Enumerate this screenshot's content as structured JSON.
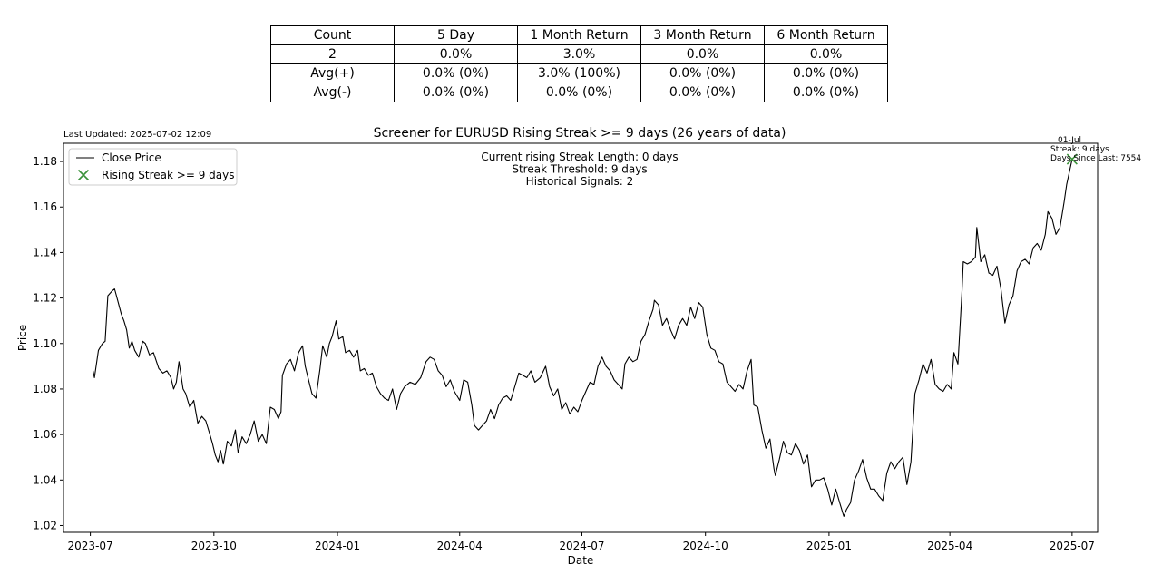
{
  "stats_table": {
    "header": [
      "Count",
      "5 Day",
      "1 Month Return",
      "3 Month Return",
      "6 Month Return"
    ],
    "rows": [
      [
        "2",
        "0.0%",
        "3.0%",
        "0.0%",
        "0.0%"
      ],
      [
        "Avg(+)",
        "0.0% (0%)",
        "3.0% (100%)",
        "0.0% (0%)",
        "0.0% (0%)"
      ],
      [
        "Avg(-)",
        "0.0% (0%)",
        "0.0% (0%)",
        "0.0% (0%)",
        "0.0% (0%)"
      ]
    ]
  },
  "last_updated": "Last Updated: 2025-07-02 12:09",
  "chart_data": {
    "type": "line",
    "title": "Screener for EURUSD Rising Streak >= 9 days (26 years of data)",
    "xlabel": "Date",
    "ylabel": "Price",
    "ylim": [
      1.017,
      1.188
    ],
    "xlim": [
      "2023-06-11",
      "2025-07-20"
    ],
    "x_tick_labels": [
      "2023-07",
      "2023-10",
      "2024-01",
      "2024-04",
      "2024-07",
      "2024-10",
      "2025-01",
      "2025-04",
      "2025-07"
    ],
    "x_tick_dates": [
      "2023-07-01",
      "2023-10-01",
      "2024-01-01",
      "2024-04-01",
      "2024-07-01",
      "2024-10-01",
      "2025-01-01",
      "2025-04-01",
      "2025-07-01"
    ],
    "y_ticks": [
      "1.02",
      "1.04",
      "1.06",
      "1.08",
      "1.10",
      "1.12",
      "1.14",
      "1.16",
      "1.18"
    ],
    "legend": {
      "placement": "top-left",
      "items": [
        "Close Price",
        "Rising Streak >= 9 days"
      ]
    },
    "info_lines": [
      "Current rising Streak Length: 0 days",
      "Streak Threshold: 9 days",
      "Historical Signals: 2"
    ],
    "signal_annotation": [
      "01-Jul",
      "Streak: 9 days",
      "Days Since Last: 7554"
    ],
    "line_color": "#000000",
    "marker_color": "#3a923a",
    "series": [
      {
        "name": "Close Price",
        "points": [
          [
            "2023-07-03",
            1.088
          ],
          [
            "2023-07-04",
            1.085
          ],
          [
            "2023-07-07",
            1.097
          ],
          [
            "2023-07-10",
            1.1
          ],
          [
            "2023-07-12",
            1.101
          ],
          [
            "2023-07-14",
            1.121
          ],
          [
            "2023-07-17",
            1.123
          ],
          [
            "2023-07-19",
            1.124
          ],
          [
            "2023-07-20",
            1.122
          ],
          [
            "2023-07-24",
            1.113
          ],
          [
            "2023-07-26",
            1.11
          ],
          [
            "2023-07-28",
            1.106
          ],
          [
            "2023-07-30",
            1.098
          ],
          [
            "2023-08-01",
            1.101
          ],
          [
            "2023-08-03",
            1.097
          ],
          [
            "2023-08-06",
            1.094
          ],
          [
            "2023-08-09",
            1.101
          ],
          [
            "2023-08-11",
            1.1
          ],
          [
            "2023-08-14",
            1.095
          ],
          [
            "2023-08-17",
            1.096
          ],
          [
            "2023-08-21",
            1.089
          ],
          [
            "2023-08-24",
            1.087
          ],
          [
            "2023-08-27",
            1.088
          ],
          [
            "2023-08-30",
            1.085
          ],
          [
            "2023-09-01",
            1.08
          ],
          [
            "2023-09-03",
            1.083
          ],
          [
            "2023-09-05",
            1.092
          ],
          [
            "2023-09-08",
            1.08
          ],
          [
            "2023-09-10",
            1.078
          ],
          [
            "2023-09-13",
            1.072
          ],
          [
            "2023-09-16",
            1.075
          ],
          [
            "2023-09-19",
            1.065
          ],
          [
            "2023-09-22",
            1.068
          ],
          [
            "2023-09-25",
            1.066
          ],
          [
            "2023-09-28",
            1.06
          ],
          [
            "2023-09-30",
            1.056
          ],
          [
            "2023-10-02",
            1.051
          ],
          [
            "2023-10-04",
            1.048
          ],
          [
            "2023-10-06",
            1.053
          ],
          [
            "2023-10-08",
            1.047
          ],
          [
            "2023-10-11",
            1.057
          ],
          [
            "2023-10-14",
            1.055
          ],
          [
            "2023-10-17",
            1.062
          ],
          [
            "2023-10-19",
            1.052
          ],
          [
            "2023-10-22",
            1.059
          ],
          [
            "2023-10-25",
            1.056
          ],
          [
            "2023-10-28",
            1.06
          ],
          [
            "2023-10-31",
            1.066
          ],
          [
            "2023-11-03",
            1.057
          ],
          [
            "2023-11-06",
            1.06
          ],
          [
            "2023-11-09",
            1.056
          ],
          [
            "2023-11-12",
            1.072
          ],
          [
            "2023-11-15",
            1.071
          ],
          [
            "2023-11-18",
            1.067
          ],
          [
            "2023-11-20",
            1.07
          ],
          [
            "2023-11-21",
            1.086
          ],
          [
            "2023-11-24",
            1.091
          ],
          [
            "2023-11-27",
            1.093
          ],
          [
            "2023-11-30",
            1.088
          ],
          [
            "2023-12-03",
            1.096
          ],
          [
            "2023-12-06",
            1.099
          ],
          [
            "2023-12-08",
            1.09
          ],
          [
            "2023-12-10",
            1.085
          ],
          [
            "2023-12-13",
            1.078
          ],
          [
            "2023-12-16",
            1.076
          ],
          [
            "2023-12-19",
            1.089
          ],
          [
            "2023-12-21",
            1.099
          ],
          [
            "2023-12-24",
            1.094
          ],
          [
            "2023-12-26",
            1.1
          ],
          [
            "2023-12-28",
            1.103
          ],
          [
            "2023-12-31",
            1.11
          ],
          [
            "2024-01-02",
            1.102
          ],
          [
            "2024-01-05",
            1.103
          ],
          [
            "2024-01-07",
            1.096
          ],
          [
            "2024-01-10",
            1.097
          ],
          [
            "2024-01-13",
            1.094
          ],
          [
            "2024-01-16",
            1.097
          ],
          [
            "2024-01-18",
            1.088
          ],
          [
            "2024-01-21",
            1.089
          ],
          [
            "2024-01-24",
            1.086
          ],
          [
            "2024-01-27",
            1.087
          ],
          [
            "2024-01-30",
            1.081
          ],
          [
            "2024-02-02",
            1.078
          ],
          [
            "2024-02-05",
            1.076
          ],
          [
            "2024-02-08",
            1.075
          ],
          [
            "2024-02-11",
            1.08
          ],
          [
            "2024-02-14",
            1.071
          ],
          [
            "2024-02-17",
            1.078
          ],
          [
            "2024-02-20",
            1.081
          ],
          [
            "2024-02-24",
            1.083
          ],
          [
            "2024-02-28",
            1.082
          ],
          [
            "2024-03-03",
            1.085
          ],
          [
            "2024-03-07",
            1.092
          ],
          [
            "2024-03-10",
            1.094
          ],
          [
            "2024-03-13",
            1.093
          ],
          [
            "2024-03-16",
            1.088
          ],
          [
            "2024-03-19",
            1.086
          ],
          [
            "2024-03-22",
            1.081
          ],
          [
            "2024-03-25",
            1.084
          ],
          [
            "2024-03-28",
            1.079
          ],
          [
            "2024-04-01",
            1.075
          ],
          [
            "2024-04-04",
            1.084
          ],
          [
            "2024-04-07",
            1.083
          ],
          [
            "2024-04-10",
            1.073
          ],
          [
            "2024-04-12",
            1.064
          ],
          [
            "2024-04-15",
            1.062
          ],
          [
            "2024-04-18",
            1.064
          ],
          [
            "2024-04-21",
            1.066
          ],
          [
            "2024-04-24",
            1.071
          ],
          [
            "2024-04-27",
            1.067
          ],
          [
            "2024-04-30",
            1.073
          ],
          [
            "2024-05-03",
            1.076
          ],
          [
            "2024-05-06",
            1.077
          ],
          [
            "2024-05-09",
            1.075
          ],
          [
            "2024-05-12",
            1.081
          ],
          [
            "2024-05-15",
            1.087
          ],
          [
            "2024-05-18",
            1.086
          ],
          [
            "2024-05-21",
            1.085
          ],
          [
            "2024-05-24",
            1.088
          ],
          [
            "2024-05-27",
            1.083
          ],
          [
            "2024-05-31",
            1.085
          ],
          [
            "2024-06-04",
            1.09
          ],
          [
            "2024-06-07",
            1.081
          ],
          [
            "2024-06-10",
            1.077
          ],
          [
            "2024-06-13",
            1.08
          ],
          [
            "2024-06-16",
            1.071
          ],
          [
            "2024-06-19",
            1.074
          ],
          [
            "2024-06-22",
            1.069
          ],
          [
            "2024-06-25",
            1.072
          ],
          [
            "2024-06-28",
            1.07
          ],
          [
            "2024-07-01",
            1.075
          ],
          [
            "2024-07-04",
            1.079
          ],
          [
            "2024-07-07",
            1.083
          ],
          [
            "2024-07-10",
            1.082
          ],
          [
            "2024-07-13",
            1.09
          ],
          [
            "2024-07-16",
            1.094
          ],
          [
            "2024-07-19",
            1.09
          ],
          [
            "2024-07-22",
            1.088
          ],
          [
            "2024-07-25",
            1.084
          ],
          [
            "2024-07-28",
            1.082
          ],
          [
            "2024-07-31",
            1.08
          ],
          [
            "2024-08-02",
            1.091
          ],
          [
            "2024-08-05",
            1.094
          ],
          [
            "2024-08-08",
            1.092
          ],
          [
            "2024-08-11",
            1.093
          ],
          [
            "2024-08-14",
            1.101
          ],
          [
            "2024-08-17",
            1.104
          ],
          [
            "2024-08-20",
            1.11
          ],
          [
            "2024-08-23",
            1.115
          ],
          [
            "2024-08-24",
            1.119
          ],
          [
            "2024-08-27",
            1.117
          ],
          [
            "2024-08-30",
            1.108
          ],
          [
            "2024-09-02",
            1.111
          ],
          [
            "2024-09-05",
            1.106
          ],
          [
            "2024-09-08",
            1.102
          ],
          [
            "2024-09-11",
            1.108
          ],
          [
            "2024-09-14",
            1.111
          ],
          [
            "2024-09-17",
            1.108
          ],
          [
            "2024-09-20",
            1.116
          ],
          [
            "2024-09-23",
            1.111
          ],
          [
            "2024-09-26",
            1.118
          ],
          [
            "2024-09-29",
            1.116
          ],
          [
            "2024-10-02",
            1.104
          ],
          [
            "2024-10-05",
            1.098
          ],
          [
            "2024-10-08",
            1.097
          ],
          [
            "2024-10-11",
            1.092
          ],
          [
            "2024-10-14",
            1.091
          ],
          [
            "2024-10-17",
            1.083
          ],
          [
            "2024-10-20",
            1.081
          ],
          [
            "2024-10-23",
            1.079
          ],
          [
            "2024-10-26",
            1.082
          ],
          [
            "2024-10-29",
            1.08
          ],
          [
            "2024-11-01",
            1.088
          ],
          [
            "2024-11-04",
            1.093
          ],
          [
            "2024-11-06",
            1.073
          ],
          [
            "2024-11-09",
            1.072
          ],
          [
            "2024-11-12",
            1.062
          ],
          [
            "2024-11-15",
            1.054
          ],
          [
            "2024-11-18",
            1.058
          ],
          [
            "2024-11-21",
            1.045
          ],
          [
            "2024-11-22",
            1.042
          ],
          [
            "2024-11-25",
            1.049
          ],
          [
            "2024-11-28",
            1.057
          ],
          [
            "2024-12-01",
            1.052
          ],
          [
            "2024-12-04",
            1.051
          ],
          [
            "2024-12-07",
            1.056
          ],
          [
            "2024-12-10",
            1.053
          ],
          [
            "2024-12-13",
            1.047
          ],
          [
            "2024-12-16",
            1.051
          ],
          [
            "2024-12-19",
            1.037
          ],
          [
            "2024-12-22",
            1.04
          ],
          [
            "2024-12-25",
            1.04
          ],
          [
            "2024-12-28",
            1.041
          ],
          [
            "2024-12-31",
            1.036
          ],
          [
            "2025-01-03",
            1.029
          ],
          [
            "2025-01-06",
            1.036
          ],
          [
            "2025-01-09",
            1.03
          ],
          [
            "2025-01-12",
            1.024
          ],
          [
            "2025-01-14",
            1.027
          ],
          [
            "2025-01-17",
            1.03
          ],
          [
            "2025-01-20",
            1.04
          ],
          [
            "2025-01-23",
            1.044
          ],
          [
            "2025-01-26",
            1.049
          ],
          [
            "2025-01-29",
            1.041
          ],
          [
            "2025-02-01",
            1.036
          ],
          [
            "2025-02-04",
            1.036
          ],
          [
            "2025-02-07",
            1.033
          ],
          [
            "2025-02-10",
            1.031
          ],
          [
            "2025-02-13",
            1.043
          ],
          [
            "2025-02-16",
            1.048
          ],
          [
            "2025-02-19",
            1.045
          ],
          [
            "2025-02-22",
            1.048
          ],
          [
            "2025-02-25",
            1.05
          ],
          [
            "2025-02-28",
            1.038
          ],
          [
            "2025-03-03",
            1.048
          ],
          [
            "2025-03-06",
            1.078
          ],
          [
            "2025-03-09",
            1.084
          ],
          [
            "2025-03-12",
            1.091
          ],
          [
            "2025-03-15",
            1.087
          ],
          [
            "2025-03-18",
            1.093
          ],
          [
            "2025-03-21",
            1.082
          ],
          [
            "2025-03-24",
            1.08
          ],
          [
            "2025-03-27",
            1.079
          ],
          [
            "2025-03-30",
            1.082
          ],
          [
            "2025-04-02",
            1.08
          ],
          [
            "2025-04-04",
            1.096
          ],
          [
            "2025-04-07",
            1.091
          ],
          [
            "2025-04-10",
            1.123
          ],
          [
            "2025-04-11",
            1.136
          ],
          [
            "2025-04-14",
            1.135
          ],
          [
            "2025-04-17",
            1.136
          ],
          [
            "2025-04-20",
            1.138
          ],
          [
            "2025-04-21",
            1.151
          ],
          [
            "2025-04-24",
            1.136
          ],
          [
            "2025-04-27",
            1.139
          ],
          [
            "2025-04-30",
            1.131
          ],
          [
            "2025-05-03",
            1.13
          ],
          [
            "2025-05-06",
            1.134
          ],
          [
            "2025-05-09",
            1.124
          ],
          [
            "2025-05-12",
            1.109
          ],
          [
            "2025-05-15",
            1.117
          ],
          [
            "2025-05-18",
            1.121
          ],
          [
            "2025-05-21",
            1.132
          ],
          [
            "2025-05-24",
            1.136
          ],
          [
            "2025-05-27",
            1.137
          ],
          [
            "2025-05-30",
            1.135
          ],
          [
            "2025-06-02",
            1.142
          ],
          [
            "2025-06-05",
            1.144
          ],
          [
            "2025-06-08",
            1.141
          ],
          [
            "2025-06-11",
            1.148
          ],
          [
            "2025-06-13",
            1.158
          ],
          [
            "2025-06-16",
            1.155
          ],
          [
            "2025-06-19",
            1.148
          ],
          [
            "2025-06-22",
            1.151
          ],
          [
            "2025-06-25",
            1.162
          ],
          [
            "2025-06-27",
            1.17
          ],
          [
            "2025-07-01",
            1.181
          ]
        ]
      },
      {
        "name": "Rising Streak >= 9 days",
        "points": [
          [
            "2025-07-01",
            1.181
          ]
        ]
      }
    ]
  }
}
